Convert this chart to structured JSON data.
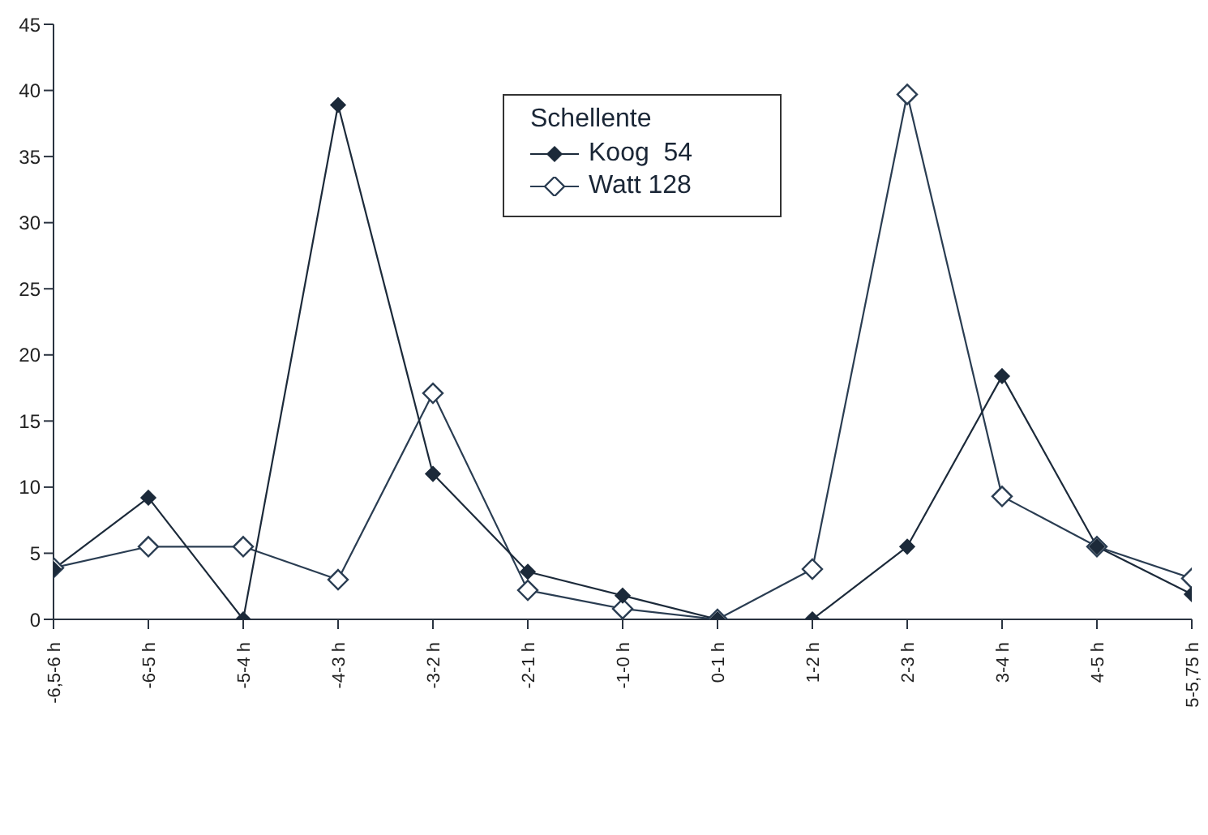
{
  "chart_data": {
    "type": "line",
    "legend_title": "Schellente",
    "categories": [
      "-6,5-6 h",
      "-6-5 h",
      "-5-4 h",
      "-4-3 h",
      "-3-2 h",
      "-2-1 h",
      "-1-0 h",
      "0-1 h",
      "1-2 h",
      "2-3 h",
      "3-4 h",
      "4-5 h",
      "5-5,75 h"
    ],
    "series": [
      {
        "name": "Koog  54",
        "color": "#1c2a3a",
        "values": [
          3.8,
          9.2,
          0,
          38.9,
          11,
          3.6,
          1.8,
          0,
          0,
          5.5,
          18.4,
          5.5,
          1.9
        ]
      },
      {
        "name": "Watt 128",
        "color": "#2a3d52",
        "values": [
          3.9,
          5.5,
          5.5,
          3.0,
          17.1,
          2.2,
          0.8,
          0,
          3.8,
          39.7,
          9.3,
          5.5,
          3.1
        ]
      }
    ],
    "ylim": [
      0,
      45
    ],
    "yticks": [
      0,
      5,
      10,
      15,
      20,
      25,
      30,
      35,
      40,
      45
    ],
    "grid": false,
    "legend": "top",
    "marker": "diamond",
    "line_style": "solid"
  }
}
